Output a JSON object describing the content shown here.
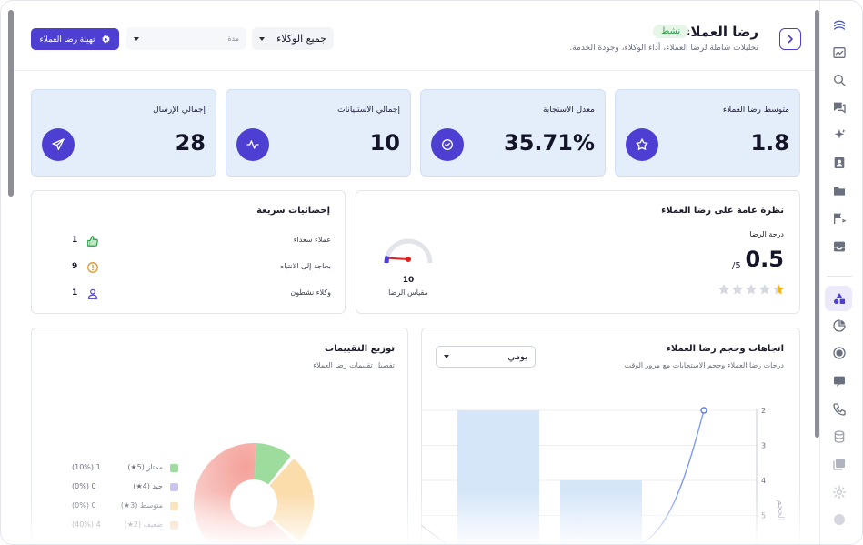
{
  "header": {
    "title": "رضا العملاء",
    "status": "نشط",
    "subtitle": "تحليلات شاملة لرضا العملاء، أداء الوكلاء، وجودة الخدمة.",
    "agents_select": "جميع الوكلاء",
    "period_label": "مدة",
    "export_label": "تهيئة رضا العملاء"
  },
  "stats": [
    {
      "label": "متوسط رضا العملاء",
      "value": "1.8",
      "icon": "star-icon"
    },
    {
      "label": "معدل الاستجابة",
      "value": "35.71%",
      "icon": "check-circle-icon"
    },
    {
      "label": "إجمالي الاستبيانات",
      "value": "10",
      "icon": "activity-icon"
    },
    {
      "label": "إجمالي الإرسال",
      "value": "28",
      "icon": "send-icon"
    }
  ],
  "overview": {
    "title": "نظرة عامة على رضا العملاء",
    "score_label": "درجة الرضا",
    "score": "0.5",
    "score_max": "/5",
    "stars": 0.5,
    "gauge_value": "10",
    "gauge_label": "مقياس الرضا",
    "gauge_fraction": 0.1
  },
  "quick_stats": {
    "title": "إحصائيات سريعة",
    "items": [
      {
        "label": "عملاء سعداء",
        "count": "1",
        "icon": "thumbs-up-icon",
        "color": "#2e9a4a"
      },
      {
        "label": "بحاجة إلى الانتباه",
        "count": "9",
        "icon": "alert-circle-icon",
        "color": "#e08a14"
      },
      {
        "label": "وكلاء نشطون",
        "count": "1",
        "icon": "user-icon",
        "color": "#4c3fd2"
      }
    ]
  },
  "trends": {
    "title": "اتجاهات وحجم رضا العملاء",
    "subtitle": "درجات رضا العملاء وحجم الاستجابات مع مرور الوقت",
    "period_select": "يومي",
    "y_axis_label": "الحجم",
    "y_ticks": [
      "5",
      "4",
      "3",
      "2"
    ]
  },
  "distribution": {
    "title": "توزيع التقييمات",
    "subtitle": "تفصيل تقييمات رضا العملاء",
    "items": [
      {
        "label": "ممتاز (5★)",
        "count": "1",
        "pct": "(10%)",
        "color": "#9edc9e",
        "value": 1
      },
      {
        "label": "جيد (4★)",
        "count": "0",
        "pct": "(0%)",
        "color": "#c9c4f2",
        "value": 0
      },
      {
        "label": "متوسط (3★)",
        "count": "0",
        "pct": "(0%)",
        "color": "#fbdcab",
        "value": 0
      },
      {
        "label": "ضعيف (2★)",
        "count": "4",
        "pct": "(40%)",
        "color": "#fbc9a0",
        "value": 4
      }
    ]
  },
  "chart_data": [
    {
      "type": "bar",
      "title": "اتجاهات وحجم رضا العملاء",
      "ylabel": "الحجم",
      "y_ticks": [
        2,
        3,
        4,
        5
      ],
      "series": [
        {
          "values": [
            5,
            3
          ]
        }
      ]
    },
    {
      "type": "pie",
      "title": "توزيع التقييمات",
      "categories": [
        "ممتاز (5★)",
        "جيد (4★)",
        "متوسط (3★)",
        "ضعيف (2★)"
      ],
      "values": [
        1,
        0,
        0,
        4
      ]
    }
  ]
}
